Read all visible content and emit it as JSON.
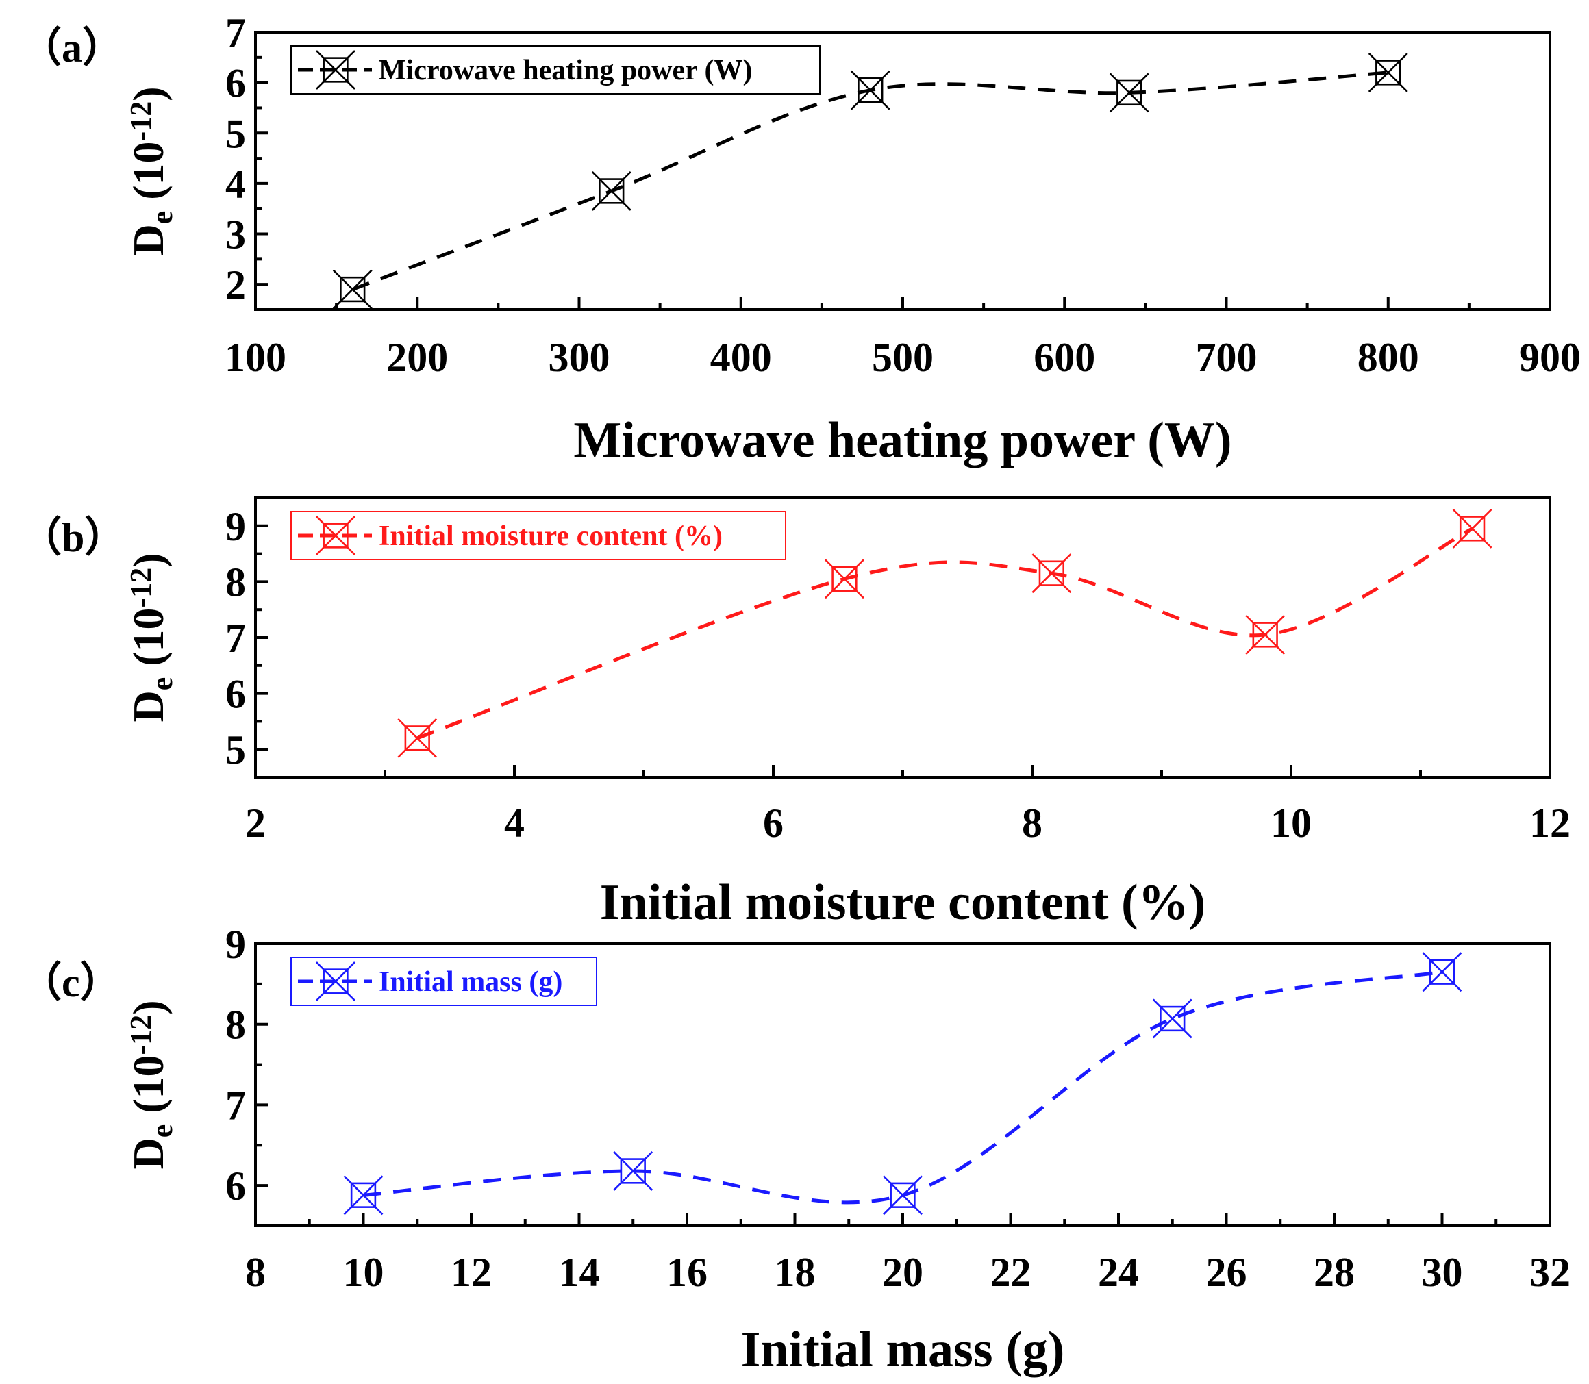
{
  "chart_data": [
    {
      "type": "line",
      "panel": "（a）",
      "title": "",
      "xlabel": "Microwave heating power (W)",
      "ylabel": {
        "main": "D",
        "sub": "e",
        "unit_open": " (10",
        "exp": "-12",
        "unit_close": ")"
      },
      "xlim": [
        100,
        900
      ],
      "ylim": [
        1.5,
        7
      ],
      "xticks": [
        100,
        200,
        300,
        400,
        500,
        600,
        700,
        800,
        900
      ],
      "yticks": [
        2,
        3,
        4,
        5,
        6,
        7
      ],
      "legend_position": "top-left",
      "series": [
        {
          "name": "Microwave heating power (W)",
          "color": "#000000",
          "marker": "boxed-x",
          "line": "dashed-spline",
          "x": [
            160,
            320,
            480,
            640,
            800
          ],
          "y": [
            1.9,
            3.85,
            5.85,
            5.8,
            6.2
          ]
        }
      ]
    },
    {
      "type": "line",
      "panel": "（b）",
      "title": "",
      "xlabel": "Initial moisture content (%)",
      "ylabel": {
        "main": "D",
        "sub": "e",
        "unit_open": " (10",
        "exp": "-12",
        "unit_close": ")"
      },
      "xlim": [
        2,
        12
      ],
      "ylim": [
        4.5,
        9.5
      ],
      "xticks": [
        2,
        4,
        6,
        8,
        10,
        12
      ],
      "yticks": [
        5,
        6,
        7,
        8,
        9
      ],
      "legend_position": "top-left",
      "series": [
        {
          "name": "Initial moisture content (%)",
          "color": "#ff1a1a",
          "marker": "boxed-x",
          "line": "dashed-spline",
          "x": [
            3.25,
            6.55,
            8.15,
            9.8,
            11.4
          ],
          "y": [
            5.2,
            8.05,
            8.15,
            7.05,
            8.95
          ]
        }
      ]
    },
    {
      "type": "line",
      "panel": "（c）",
      "title": "",
      "xlabel": "Initial mass (g)",
      "ylabel": {
        "main": "D",
        "sub": "e",
        "unit_open": " (10",
        "exp": "-12",
        "unit_close": ")"
      },
      "xlim": [
        8,
        32
      ],
      "ylim": [
        5.5,
        9
      ],
      "xticks": [
        8,
        10,
        12,
        14,
        16,
        18,
        20,
        22,
        24,
        26,
        28,
        30,
        32
      ],
      "yticks": [
        6,
        7,
        8,
        9
      ],
      "legend_position": "top-left",
      "series": [
        {
          "name": "Initial mass (g)",
          "color": "#1a1aff",
          "marker": "boxed-x",
          "line": "dashed-spline",
          "x": [
            10,
            15,
            20,
            25,
            30
          ],
          "y": [
            5.88,
            6.18,
            5.88,
            8.07,
            8.65
          ]
        }
      ]
    }
  ]
}
